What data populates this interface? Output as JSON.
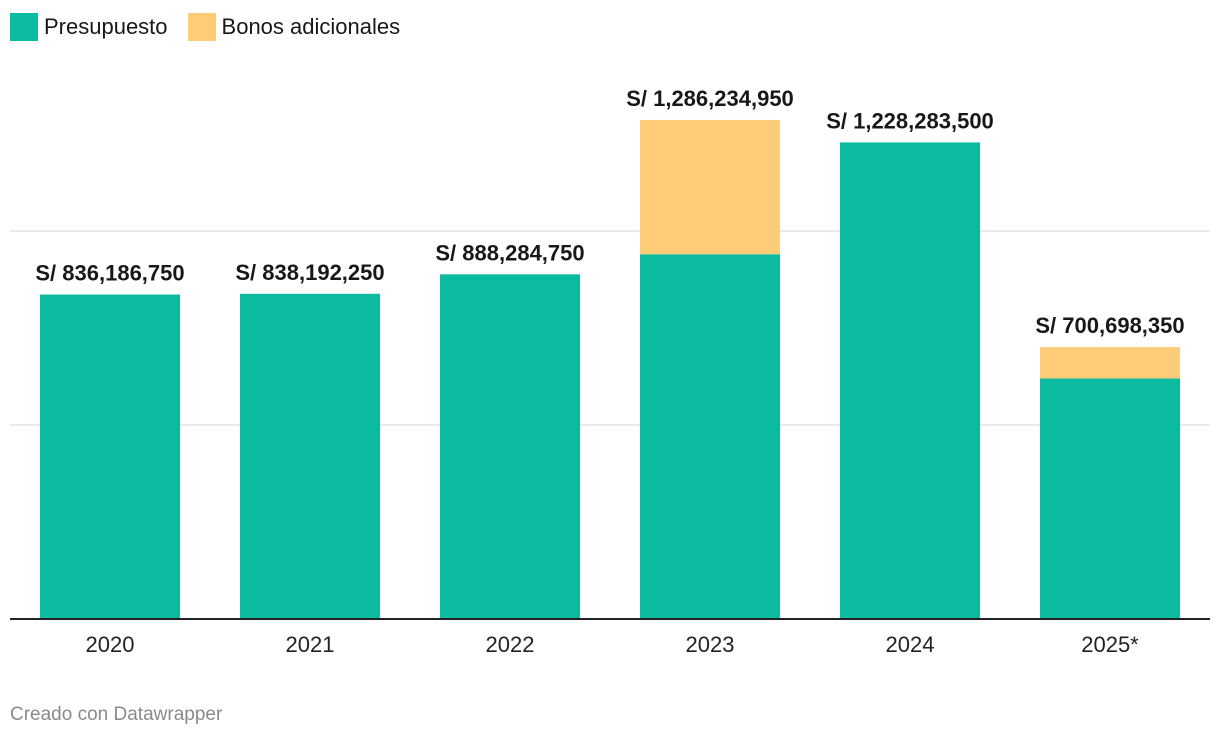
{
  "chart_data": {
    "type": "bar",
    "stacked": true,
    "categories": [
      "2020",
      "2021",
      "2022",
      "2023",
      "2024",
      "2025*"
    ],
    "series": [
      {
        "name": "Presupuesto",
        "color": "#0bbba0",
        "values": [
          836186750,
          838192250,
          888284750,
          940000000,
          1228283500,
          620000000
        ]
      },
      {
        "name": "Bonos adicionales",
        "color": "#fecb76",
        "values": [
          0,
          0,
          0,
          346234950,
          0,
          80698350
        ]
      }
    ],
    "totals": [
      836186750,
      838192250,
      888284750,
      1286234950,
      1228283500,
      700698350
    ],
    "total_labels": [
      "S/ 836,186,750",
      "S/ 838,192,250",
      "S/ 888,284,750",
      "S/ 1,286,234,950",
      "S/ 1,228,283,500",
      "S/ 700,698,350"
    ],
    "ylim": [
      0,
      1500000000
    ],
    "gridlines": [
      500000000,
      1000000000
    ],
    "grid": true,
    "legend_position": "top-left",
    "title": "",
    "xlabel": "",
    "ylabel": ""
  },
  "credit": "Creado con Datawrapper"
}
